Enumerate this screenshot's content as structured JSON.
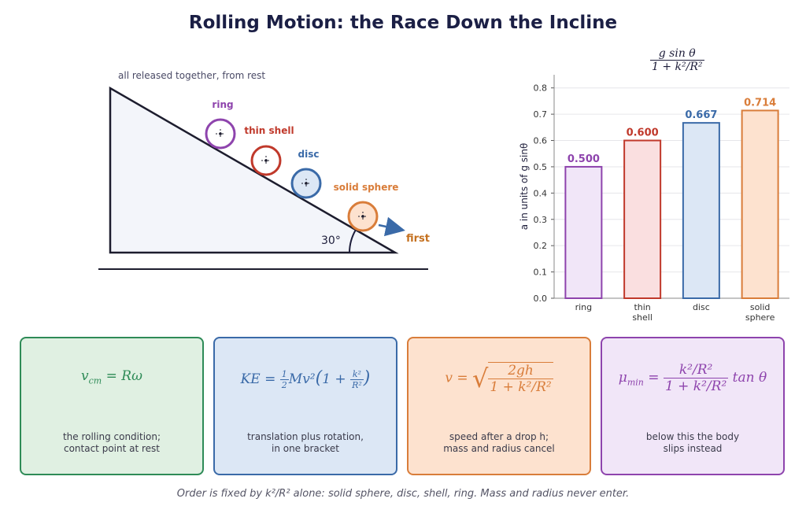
{
  "title": "Rolling Motion: the Race Down the Incline",
  "incline": {
    "caption": "all released together, from rest",
    "angle_label": "30°",
    "first_label": "first",
    "bodies": [
      {
        "name": "ring",
        "color": "#8e44ad",
        "fill": "#ffffff"
      },
      {
        "name": "thin shell",
        "color": "#c0392b",
        "fill": "#ffffff"
      },
      {
        "name": "disc",
        "color": "#3a6aa8",
        "fill": "#dce7f5"
      },
      {
        "name": "solid sphere",
        "color": "#d97d3a",
        "fill": "#fde2cf"
      }
    ]
  },
  "chart_data": {
    "type": "bar",
    "title": "a = g sinθ / (1 + k²/R²)",
    "categories": [
      "ring",
      "thin shell",
      "disc",
      "solid sphere"
    ],
    "values": [
      0.5,
      0.6,
      0.667,
      0.714
    ],
    "value_labels": [
      "0.500",
      "0.600",
      "0.667",
      "0.714"
    ],
    "ylabel": "a in units of g sinθ",
    "ylim": [
      0,
      0.85
    ],
    "yticks": [
      "0.0",
      "0.1",
      "0.2",
      "0.3",
      "0.4",
      "0.5",
      "0.6",
      "0.7",
      "0.8"
    ],
    "grid": true,
    "bar_colors": [
      "#8e44ad",
      "#c0392b",
      "#3a6aa8",
      "#d97d3a"
    ],
    "bar_fills": [
      "#f1e6f8",
      "#fadfe0",
      "#dce7f5",
      "#fde2cf"
    ]
  },
  "cards": [
    {
      "formula": "v_cm = Rω",
      "desc": [
        "the rolling condition;",
        "contact point at rest"
      ],
      "color": "#2e8b57",
      "bg": "#e0f0e2"
    },
    {
      "formula": "KE = ½Mv²(1 + k²/R²)",
      "desc": [
        "translation plus rotation,",
        "in one bracket"
      ],
      "color": "#3a6aa8",
      "bg": "#dce7f5"
    },
    {
      "formula": "v = √(2gh / (1 + k²/R²))",
      "desc": [
        "speed after a drop h;",
        "mass and radius cancel"
      ],
      "color": "#d97d3a",
      "bg": "#fde2cf"
    },
    {
      "formula": "μ_min = (k²/R²)/(1 + k²/R²) tanθ",
      "desc": [
        "below this the body",
        "slips instead"
      ],
      "color": "#8e44ad",
      "bg": "#f1e6f8"
    }
  ],
  "footer": "Order is fixed by k²/R² alone: solid sphere, disc, shell, ring. Mass and radius never enter."
}
